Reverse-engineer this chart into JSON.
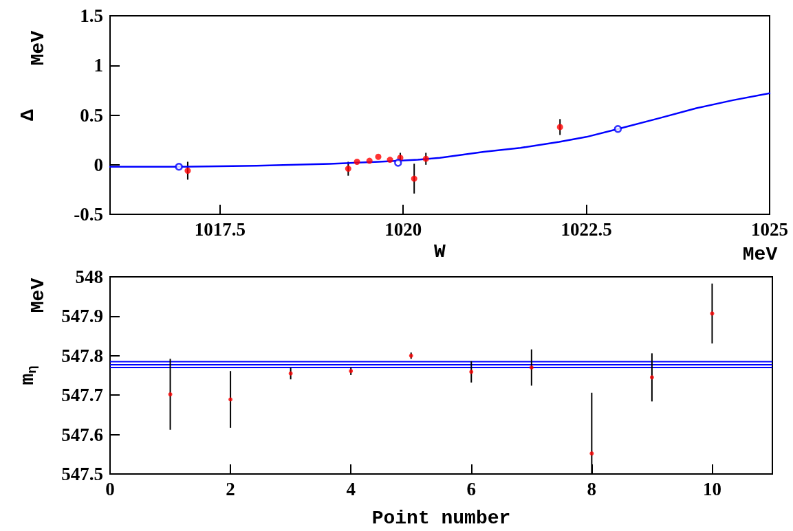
{
  "chart_data": [
    {
      "type": "scatter",
      "xlabel": "W",
      "ylabel": "Δ",
      "annotations": [
        "MeV",
        "MeV"
      ],
      "xlim": [
        1016,
        1025
      ],
      "xticks": [
        1017.5,
        1020,
        1022.5,
        1025
      ],
      "ylim": [
        -0.5,
        1.5
      ],
      "yticks": [
        -0.5,
        0,
        0.5,
        1,
        1.5
      ],
      "grid": false,
      "series": [
        {
          "type": "line",
          "color": "#0000ff",
          "marker": "none",
          "line_style": "solid",
          "x": [
            1016,
            1017,
            1018,
            1019,
            1019.67,
            1020.2,
            1020.5,
            1021.1,
            1021.6,
            1022.13,
            1022.5,
            1022.93,
            1023.5,
            1024,
            1024.5,
            1025
          ],
          "values": [
            -0.02,
            -0.02,
            -0.01,
            0.01,
            0.03,
            0.05,
            0.07,
            0.13,
            0.17,
            0.23,
            0.28,
            0.36,
            0.47,
            0.57,
            0.65,
            0.72
          ]
        },
        {
          "color": "#ff0000",
          "marker": "circle",
          "x": [
            1017.06,
            1019.25,
            1019.37,
            1019.54,
            1019.66,
            1019.82,
            1019.96,
            1020.15,
            1020.31,
            1022.14
          ],
          "values": [
            -0.06,
            -0.04,
            0.03,
            0.04,
            0.08,
            0.05,
            0.07,
            -0.14,
            0.06,
            0.38
          ],
          "errors": [
            0.09,
            0.07,
            null,
            null,
            null,
            null,
            0.05,
            0.15,
            0.06,
            0.08
          ]
        },
        {
          "color": "#0000ff",
          "marker": "circle",
          "x": [
            1016.94,
            1019.93,
            1022.93
          ],
          "values": [
            -0.02,
            0.02,
            0.36
          ]
        }
      ]
    },
    {
      "type": "scatter",
      "xlabel": "Point number",
      "ylabel": "m$_{η}$",
      "annotations": [
        "MeV"
      ],
      "xlim": [
        0,
        11
      ],
      "xticks": [
        0,
        2,
        4,
        6,
        8,
        10
      ],
      "ylim": [
        547.5,
        548
      ],
      "yticks": [
        547.5,
        547.6,
        547.7,
        547.8,
        547.9,
        548
      ],
      "grid": false,
      "marker": "circle",
      "ref_lines": [
        {
          "axis": "y",
          "value": 547.785,
          "color": "#0000ff"
        },
        {
          "axis": "y",
          "value": 547.777,
          "color": "#0000ff"
        },
        {
          "axis": "y",
          "value": 547.77,
          "color": "#0000ff"
        }
      ],
      "series": [
        {
          "color": "#ff0000",
          "x": [
            1,
            2,
            3,
            4,
            5,
            6,
            7,
            8,
            9,
            10
          ],
          "values": [
            547.702,
            547.689,
            547.755,
            547.761,
            547.8,
            547.759,
            547.77,
            547.552,
            547.745,
            547.907
          ],
          "errors": [
            0.09,
            0.072,
            0.015,
            0.01,
            0.008,
            0.027,
            0.046,
            [
              547.5,
              547.706
            ],
            0.061,
            0.076
          ]
        }
      ]
    }
  ]
}
